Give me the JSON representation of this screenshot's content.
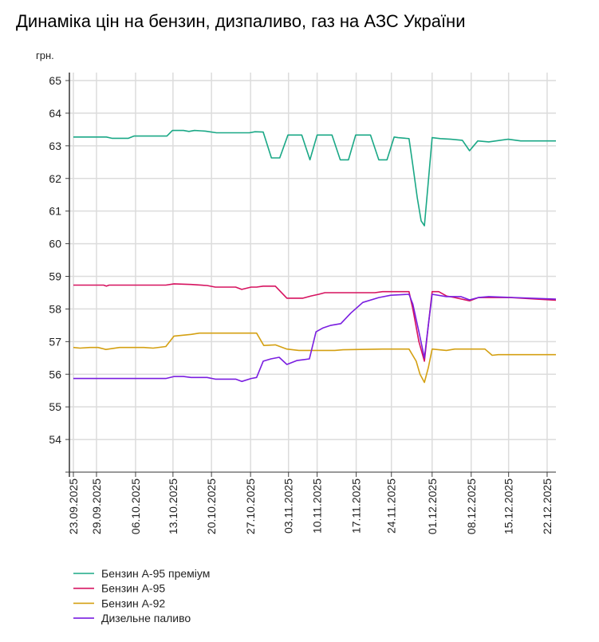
{
  "chart_data": {
    "type": "line",
    "title": "Динаміка цін на бензин, дизпаливо, газ на АЗС України",
    "ylabel": "грн.",
    "xlabel": "",
    "ylim": [
      53,
      65
    ],
    "yticks": [
      54,
      55,
      56,
      57,
      58,
      59,
      60,
      61,
      62,
      63,
      64,
      65
    ],
    "xlim": [
      0,
      87.7
    ],
    "x_unit": "observation index",
    "xticks": [
      {
        "x": 0,
        "label": "23.09.2025"
      },
      {
        "x": 4.2,
        "label": "29.09.2025"
      },
      {
        "x": 11.3,
        "label": "06.10.2025"
      },
      {
        "x": 18.1,
        "label": "13.10.2025"
      },
      {
        "x": 25.1,
        "label": "20.10.2025"
      },
      {
        "x": 32.2,
        "label": "27.10.2025"
      },
      {
        "x": 39.1,
        "label": "03.11.2025"
      },
      {
        "x": 44.3,
        "label": "10.11.2025"
      },
      {
        "x": 51.4,
        "label": "17.11.2025"
      },
      {
        "x": 57.8,
        "label": "24.11.2025"
      },
      {
        "x": 65.2,
        "label": "01.12.2025"
      },
      {
        "x": 72.3,
        "label": "08.12.2025"
      },
      {
        "x": 79.1,
        "label": "15.12.2025"
      },
      {
        "x": 86.1,
        "label": "22.12.2025"
      }
    ],
    "grid": true,
    "legend_position": "bottom-left",
    "series": [
      {
        "name": "Бензин А-95 преміум",
        "color": "#1aa886",
        "points": [
          [
            0,
            63.27
          ],
          [
            6,
            63.27
          ],
          [
            7,
            63.23
          ],
          [
            10,
            63.23
          ],
          [
            11,
            63.3
          ],
          [
            17,
            63.3
          ],
          [
            18,
            63.47
          ],
          [
            20,
            63.47
          ],
          [
            21,
            63.44
          ],
          [
            22,
            63.47
          ],
          [
            24,
            63.45
          ],
          [
            26,
            63.4
          ],
          [
            32,
            63.4
          ],
          [
            33,
            63.43
          ],
          [
            34.5,
            63.42
          ],
          [
            36,
            62.63
          ],
          [
            37.5,
            62.63
          ],
          [
            39,
            63.33
          ],
          [
            41.5,
            63.33
          ],
          [
            43,
            62.57
          ],
          [
            44.3,
            63.33
          ],
          [
            47,
            63.33
          ],
          [
            48.5,
            62.57
          ],
          [
            50,
            62.57
          ],
          [
            51.3,
            63.33
          ],
          [
            54,
            63.33
          ],
          [
            55.5,
            62.57
          ],
          [
            57,
            62.57
          ],
          [
            58.3,
            63.27
          ],
          [
            59,
            63.25
          ],
          [
            61,
            63.22
          ],
          [
            61.7,
            62.4
          ],
          [
            62.5,
            61.4
          ],
          [
            63.2,
            60.7
          ],
          [
            63.8,
            60.55
          ],
          [
            64.5,
            61.9
          ],
          [
            65.2,
            63.25
          ],
          [
            66.7,
            63.22
          ],
          [
            68.6,
            63.2
          ],
          [
            70.7,
            63.17
          ],
          [
            72,
            62.85
          ],
          [
            73.5,
            63.15
          ],
          [
            75.5,
            63.12
          ],
          [
            79,
            63.2
          ],
          [
            81.3,
            63.15
          ],
          [
            87.7,
            63.15
          ]
        ]
      },
      {
        "name": "Бензин А-95",
        "color": "#d6125f",
        "points": [
          [
            0,
            58.73
          ],
          [
            5.5,
            58.73
          ],
          [
            6,
            58.7
          ],
          [
            6.5,
            58.73
          ],
          [
            16.8,
            58.73
          ],
          [
            18.3,
            58.77
          ],
          [
            21.4,
            58.75
          ],
          [
            24.3,
            58.72
          ],
          [
            25.8,
            58.67
          ],
          [
            29.5,
            58.67
          ],
          [
            30.6,
            58.6
          ],
          [
            32.3,
            58.67
          ],
          [
            33.3,
            58.67
          ],
          [
            34.5,
            58.7
          ],
          [
            36.7,
            58.7
          ],
          [
            38.8,
            58.33
          ],
          [
            41.7,
            58.33
          ],
          [
            43.2,
            58.4
          ],
          [
            44.6,
            58.45
          ],
          [
            45.7,
            58.5
          ],
          [
            54.8,
            58.5
          ],
          [
            56.2,
            58.53
          ],
          [
            61,
            58.53
          ],
          [
            61.7,
            58.0
          ],
          [
            62.8,
            57.0
          ],
          [
            63.8,
            56.4
          ],
          [
            64.5,
            57.5
          ],
          [
            65.2,
            58.53
          ],
          [
            66.4,
            58.53
          ],
          [
            67.8,
            58.4
          ],
          [
            69.3,
            58.35
          ],
          [
            72,
            58.25
          ],
          [
            73.6,
            58.35
          ],
          [
            79.4,
            58.35
          ],
          [
            87.7,
            58.27
          ]
        ]
      },
      {
        "name": "Бензин А-92",
        "color": "#d4a012",
        "points": [
          [
            0,
            56.82
          ],
          [
            1.2,
            56.8
          ],
          [
            3,
            56.82
          ],
          [
            4.5,
            56.82
          ],
          [
            5.9,
            56.76
          ],
          [
            8.4,
            56.82
          ],
          [
            12.8,
            56.82
          ],
          [
            14.5,
            56.8
          ],
          [
            16.8,
            56.85
          ],
          [
            18.3,
            57.17
          ],
          [
            21.4,
            57.22
          ],
          [
            22.9,
            57.26
          ],
          [
            33.3,
            57.26
          ],
          [
            34.6,
            56.88
          ],
          [
            36.7,
            56.9
          ],
          [
            38.8,
            56.77
          ],
          [
            41,
            56.73
          ],
          [
            47.5,
            56.73
          ],
          [
            49,
            56.75
          ],
          [
            56.2,
            56.77
          ],
          [
            61,
            56.77
          ],
          [
            62.3,
            56.4
          ],
          [
            63,
            56.0
          ],
          [
            63.8,
            55.75
          ],
          [
            64.5,
            56.2
          ],
          [
            65.2,
            56.77
          ],
          [
            67.8,
            56.73
          ],
          [
            69.3,
            56.77
          ],
          [
            74.8,
            56.77
          ],
          [
            76.1,
            56.58
          ],
          [
            77.2,
            56.6
          ],
          [
            87.7,
            56.6
          ]
        ]
      },
      {
        "name": "Дизельне паливо",
        "color": "#7a1ee0",
        "points": [
          [
            0,
            55.87
          ],
          [
            16.8,
            55.87
          ],
          [
            18.3,
            55.93
          ],
          [
            20,
            55.93
          ],
          [
            21.4,
            55.9
          ],
          [
            24.3,
            55.9
          ],
          [
            25.8,
            55.85
          ],
          [
            29.5,
            55.85
          ],
          [
            30.6,
            55.78
          ],
          [
            32.3,
            55.87
          ],
          [
            33.3,
            55.9
          ],
          [
            34.5,
            56.4
          ],
          [
            35.9,
            56.47
          ],
          [
            37.4,
            56.52
          ],
          [
            38.8,
            56.3
          ],
          [
            40.6,
            56.42
          ],
          [
            42.9,
            56.47
          ],
          [
            44.1,
            57.3
          ],
          [
            45.4,
            57.42
          ],
          [
            46.8,
            57.5
          ],
          [
            48.6,
            57.55
          ],
          [
            50.4,
            57.87
          ],
          [
            52.6,
            58.2
          ],
          [
            55.5,
            58.35
          ],
          [
            57.7,
            58.42
          ],
          [
            61,
            58.45
          ],
          [
            61.7,
            58.15
          ],
          [
            62.8,
            57.3
          ],
          [
            63.8,
            56.5
          ],
          [
            64.5,
            57.5
          ],
          [
            65.2,
            58.45
          ],
          [
            67.8,
            58.38
          ],
          [
            70.4,
            58.38
          ],
          [
            72,
            58.28
          ],
          [
            73.6,
            58.35
          ],
          [
            75.5,
            58.38
          ],
          [
            87.7,
            58.3
          ]
        ]
      }
    ]
  }
}
